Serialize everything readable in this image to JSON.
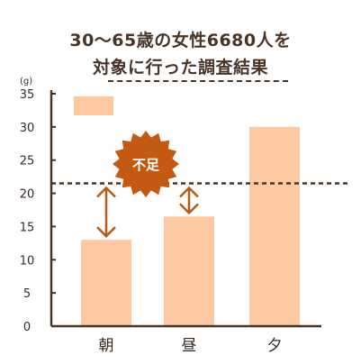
{
  "title_line1": "30〜65歳の女性6680人を",
  "title_line2": "対象に行った調査結果",
  "badge_label": "不足",
  "colors": {
    "bar": "#fcc9a3",
    "axis": "#4a3426",
    "accent": "#b85a17",
    "badge": "#c45a12"
  },
  "chart_data": {
    "type": "bar",
    "title": "30〜65歳の女性6680人を対象に行った調査結果",
    "ylabel": "(g)",
    "categories": [
      "朝",
      "昼",
      "夕"
    ],
    "values": [
      13,
      16.5,
      30
    ],
    "ylim": [
      0,
      35
    ],
    "yticks": [
      "0",
      "5",
      "10",
      "15",
      "20",
      "25",
      "30",
      "35"
    ],
    "reference_line": 21.5,
    "legend_position": "top-left"
  }
}
